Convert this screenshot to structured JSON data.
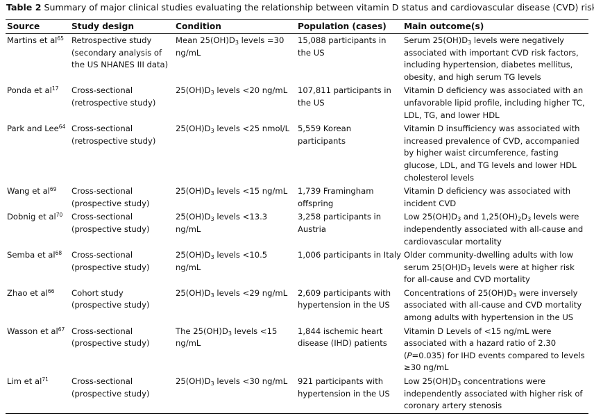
{
  "title": {
    "label": "Table 2",
    "text": "Summary of major clinical studies evaluating the relationship between vitamin D status and cardiovascular disease (CVD) risk"
  },
  "table": {
    "headers": [
      "Source",
      "Study design",
      "Condition",
      "Population (cases)",
      "Main outcome(s)"
    ],
    "rows": [
      [
        [
          "Martins et al",
          {
            "sup": "65"
          }
        ],
        [
          "Retrospective study (secondary analysis of the US NHANES III data)"
        ],
        [
          "Mean 25(OH)D",
          {
            "sub": "3"
          },
          " levels =30 ng/mL"
        ],
        [
          "15,088 participants in the US"
        ],
        [
          "Serum 25(OH)D",
          {
            "sub": "3"
          },
          " levels were negatively associated with important CVD risk factors, including hypertension, diabetes mellitus, obesity, and high serum TG levels"
        ]
      ],
      [
        [
          "Ponda et al",
          {
            "sup": "17"
          }
        ],
        [
          "Cross-sectional (retrospective study)"
        ],
        [
          "25(OH)D",
          {
            "sub": "3"
          },
          " levels <20 ng/mL"
        ],
        [
          "107,811 participants in the US"
        ],
        [
          "Vitamin D deficiency was associated with an unfavorable lipid profile, including higher TC, LDL, TG, and lower HDL"
        ]
      ],
      [
        [
          "Park and Lee",
          {
            "sup": "64"
          }
        ],
        [
          "Cross-sectional (retrospective study)"
        ],
        [
          "25(OH)D",
          {
            "sub": "3"
          },
          " levels <25 nmol/L"
        ],
        [
          "5,559 Korean participants"
        ],
        [
          "Vitamin D insufficiency was associated with increased prevalence of CVD, accompanied by higher waist circumference, fasting glucose, LDL, and TG levels and lower HDL cholesterol levels"
        ]
      ],
      [
        [
          "Wang et al",
          {
            "sup": "69"
          }
        ],
        [
          "Cross-sectional (prospective study)"
        ],
        [
          "25(OH)D",
          {
            "sub": "3"
          },
          " levels <15 ng/mL"
        ],
        [
          "1,739 Framingham offspring"
        ],
        [
          "Vitamin D deficiency was associated with incident CVD"
        ]
      ],
      [
        [
          "Dobnig et al",
          {
            "sup": "70"
          }
        ],
        [
          "Cross-sectional (prospective study)"
        ],
        [
          "25(OH)D",
          {
            "sub": "3"
          },
          " levels <13.3 ng/mL"
        ],
        [
          "3,258 participants in Austria"
        ],
        [
          "Low 25(OH)D",
          {
            "sub": "3"
          },
          " and 1,25(OH)",
          {
            "sub": "2"
          },
          "D",
          {
            "sub": "3"
          },
          " levels were independently associated with all-cause and cardiovascular mortality"
        ]
      ],
      [
        [
          "Semba et al",
          {
            "sup": "68"
          }
        ],
        [
          "Cross-sectional (prospective study)"
        ],
        [
          "25(OH)D",
          {
            "sub": "3"
          },
          " levels <10.5 ng/mL"
        ],
        [
          "1,006 participants in Italy"
        ],
        [
          "Older community-dwelling adults with low serum 25(OH)D",
          {
            "sub": "3"
          },
          " levels were at higher risk for all-cause and CVD mortality"
        ]
      ],
      [
        [
          "Zhao et al",
          {
            "sup": "66"
          }
        ],
        [
          "Cohort study (prospective study)"
        ],
        [
          "25(OH)D",
          {
            "sub": "3"
          },
          " levels <29 ng/mL"
        ],
        [
          "2,609 participants with hypertension in the US"
        ],
        [
          "Concentrations of 25(OH)D",
          {
            "sub": "3"
          },
          " were inversely associated with all-cause and CVD mortality among adults with hypertension in the US"
        ]
      ],
      [
        [
          "Wasson et al",
          {
            "sup": "67"
          }
        ],
        [
          "Cross-sectional (prospective study)"
        ],
        [
          "The 25(OH)D",
          {
            "sub": "3"
          },
          " levels <15 ng/mL"
        ],
        [
          "1,844 ischemic heart disease (IHD) patients"
        ],
        [
          "Vitamin D Levels of <15 ng/mL were associated with a hazard ratio of 2.30 (",
          {
            "i": "P"
          },
          "=0.035) for IHD events compared to levels ≥30 ng/mL"
        ]
      ],
      [
        [
          "Lim et al",
          {
            "sup": "71"
          }
        ],
        [
          "Cross-sectional (prospective study)"
        ],
        [
          "25(OH)D",
          {
            "sub": "3"
          },
          " levels <30 ng/mL"
        ],
        [
          "921 participants with hypertension in the US"
        ],
        [
          "Low 25(OH)D",
          {
            "sub": "3"
          },
          " concentrations were independently associated with higher risk of coronary artery stenosis"
        ]
      ]
    ]
  }
}
